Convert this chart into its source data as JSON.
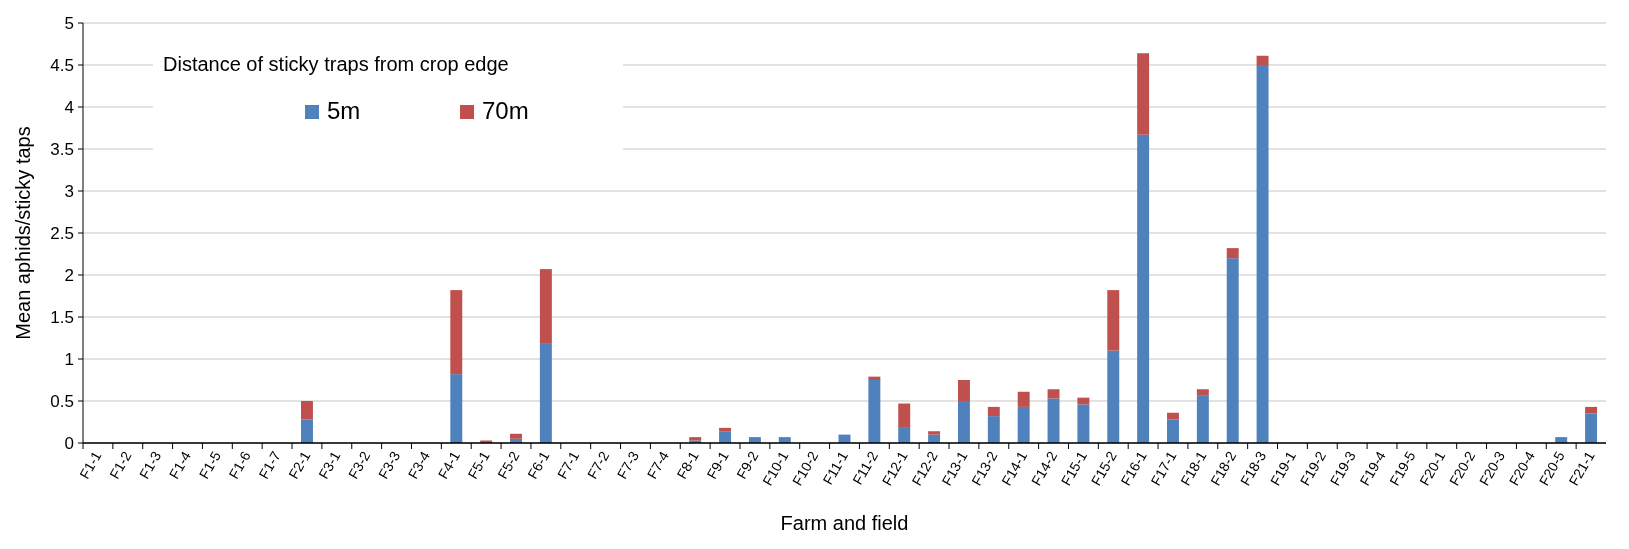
{
  "chart_data": {
    "type": "bar",
    "stacked": true,
    "xlabel": "Farm and field",
    "ylabel": "Mean aphids/sticky taps",
    "legend_title": "Distance of sticky traps from crop edge",
    "legend": "top left",
    "grid": "y",
    "categories": [
      "F1-1",
      "F1-2",
      "F1-3",
      "F1-4",
      "F1-5",
      "F1-6",
      "F1-7",
      "F2-1",
      "F3-1",
      "F3-2",
      "F3-3",
      "F3-4",
      "F4-1",
      "F5-1",
      "F5-2",
      "F6-1",
      "F7-1",
      "F7-2",
      "F7-3",
      "F7-4",
      "F8-1",
      "F9-1",
      "F9-2",
      "F10-1",
      "F10-2",
      "F11-1",
      "F11-2",
      "F12-1",
      "F12-2",
      "F13-1",
      "F13-2",
      "F14-1",
      "F14-2",
      "F15-1",
      "F15-2",
      "F16-1",
      "F17-1",
      "F18-1",
      "F18-2",
      "F18-3",
      "F19-1",
      "F19-2",
      "F19-3",
      "F19-4",
      "F19-5",
      "F20-1",
      "F20-2",
      "F20-3",
      "F20-4",
      "F20-5",
      "F21-1"
    ],
    "ylim": [
      0,
      5
    ],
    "yticks": [
      0,
      0.5,
      1,
      1.5,
      2,
      2.5,
      3,
      3.5,
      4,
      4.5,
      5
    ],
    "series": [
      {
        "name": "5m",
        "color": "#4f81bd",
        "values": [
          0,
          0,
          0,
          0,
          0,
          0,
          0,
          0.28,
          0,
          0,
          0,
          0,
          0.82,
          0,
          0.05,
          1.18,
          0,
          0,
          0,
          0,
          0.03,
          0.14,
          0.07,
          0.07,
          0,
          0.1,
          0.75,
          0.18,
          0.1,
          0.5,
          0.32,
          0.43,
          0.53,
          0.46,
          1.1,
          3.67,
          0.28,
          0.57,
          2.2,
          4.5,
          0,
          0,
          0,
          0,
          0,
          0,
          0,
          0,
          0,
          0.07,
          0.35
        ]
      },
      {
        "name": "70m",
        "color": "#c0504d",
        "values": [
          0,
          0,
          0,
          0,
          0,
          0,
          0,
          0.22,
          0,
          0,
          0,
          0,
          1.0,
          0.03,
          0.06,
          0.89,
          0,
          0,
          0,
          0,
          0.04,
          0.04,
          0,
          0,
          0,
          0,
          0.04,
          0.29,
          0.04,
          0.25,
          0.11,
          0.18,
          0.11,
          0.08,
          0.72,
          0.97,
          0.08,
          0.07,
          0.12,
          0.11,
          0,
          0,
          0,
          0,
          0,
          0,
          0,
          0,
          0,
          0,
          0.08
        ]
      }
    ]
  }
}
